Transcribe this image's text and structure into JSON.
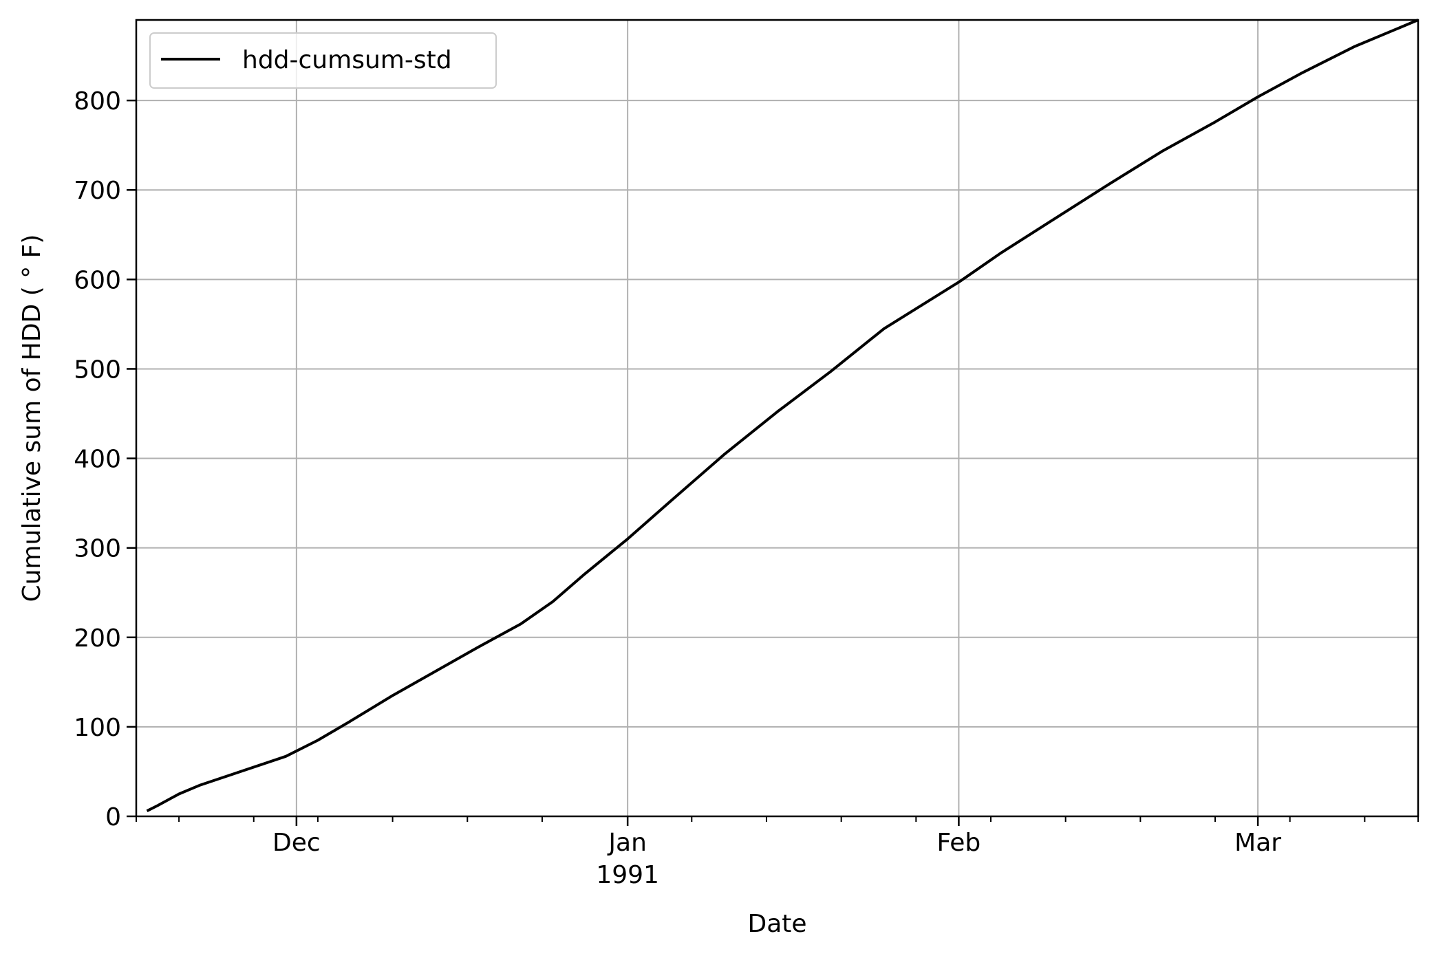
{
  "chart_data": {
    "type": "line",
    "xlabel": "Date",
    "ylabel": "Cumulative sum of HDD ($^\\circ$F)",
    "ylabel_display": "Cumulative sum of HDD ( ° F)",
    "xlim": [
      "1990-11-16",
      "1991-03-16"
    ],
    "ylim": [
      0,
      890
    ],
    "grid": true,
    "legend_position": "top-left",
    "x_major_ticks": [
      {
        "date": "1990-12-01",
        "label": "Dec",
        "sublabel": ""
      },
      {
        "date": "1991-01-01",
        "label": "Jan",
        "sublabel": "1991"
      },
      {
        "date": "1991-02-01",
        "label": "Feb",
        "sublabel": ""
      },
      {
        "date": "1991-03-01",
        "label": "Mar",
        "sublabel": ""
      }
    ],
    "x_minor_ticks": [
      "1990-11-16",
      "1990-11-20",
      "1990-11-27",
      "1990-12-03",
      "1990-12-10",
      "1990-12-17",
      "1990-12-24",
      "1991-01-07",
      "1991-01-14",
      "1991-01-21",
      "1991-01-28",
      "1991-02-04",
      "1991-02-11",
      "1991-02-18",
      "1991-02-25",
      "1991-03-04",
      "1991-03-11",
      "1991-03-16"
    ],
    "y_ticks": [
      0,
      100,
      200,
      300,
      400,
      500,
      600,
      700,
      800
    ],
    "series": [
      {
        "name": "hdd-cumsum-std",
        "color": "#000000",
        "points": [
          {
            "x": "1990-11-17",
            "y": 6
          },
          {
            "x": "1990-11-18",
            "y": 12
          },
          {
            "x": "1990-11-20",
            "y": 25
          },
          {
            "x": "1990-11-22",
            "y": 35
          },
          {
            "x": "1990-11-25",
            "y": 47
          },
          {
            "x": "1990-11-28",
            "y": 59
          },
          {
            "x": "1990-11-30",
            "y": 67
          },
          {
            "x": "1990-12-03",
            "y": 85
          },
          {
            "x": "1990-12-06",
            "y": 106
          },
          {
            "x": "1990-12-10",
            "y": 135
          },
          {
            "x": "1990-12-14",
            "y": 162
          },
          {
            "x": "1990-12-18",
            "y": 189
          },
          {
            "x": "1990-12-22",
            "y": 215
          },
          {
            "x": "1990-12-25",
            "y": 240
          },
          {
            "x": "1990-12-28",
            "y": 271
          },
          {
            "x": "1991-01-01",
            "y": 310
          },
          {
            "x": "1991-01-05",
            "y": 352
          },
          {
            "x": "1991-01-10",
            "y": 404
          },
          {
            "x": "1991-01-15",
            "y": 452
          },
          {
            "x": "1991-01-20",
            "y": 497
          },
          {
            "x": "1991-01-25",
            "y": 545
          },
          {
            "x": "1991-02-01",
            "y": 597
          },
          {
            "x": "1991-02-05",
            "y": 630
          },
          {
            "x": "1991-02-10",
            "y": 668
          },
          {
            "x": "1991-02-15",
            "y": 706
          },
          {
            "x": "1991-02-20",
            "y": 743
          },
          {
            "x": "1991-02-25",
            "y": 776
          },
          {
            "x": "1991-03-01",
            "y": 804
          },
          {
            "x": "1991-03-05",
            "y": 830
          },
          {
            "x": "1991-03-10",
            "y": 860
          },
          {
            "x": "1991-03-16",
            "y": 890
          }
        ]
      }
    ]
  },
  "legend": {
    "entries": [
      {
        "label": "hdd-cumsum-std",
        "color": "#000000"
      }
    ]
  },
  "colors": {
    "grid": "#b0b0b0",
    "axes": "#000000",
    "line": "#000000",
    "legend_border": "#cccccc"
  }
}
